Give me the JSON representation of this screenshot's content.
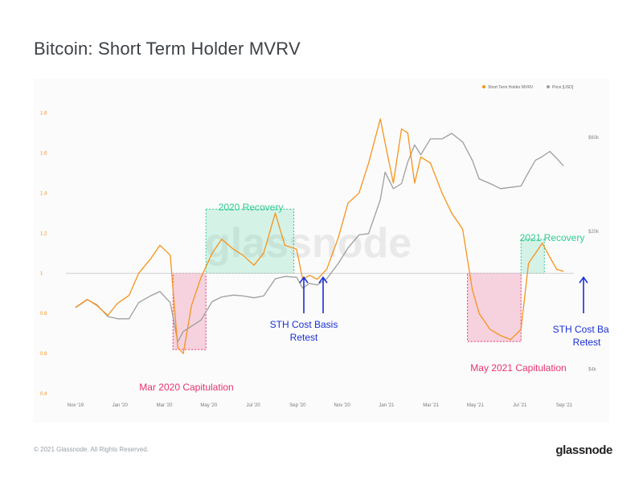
{
  "title": "Bitcoin: Short Term Holder MVRV",
  "footer": {
    "copyright": "© 2021 Glassnode. All Rights Reserved.",
    "logo": "glassnode"
  },
  "watermark": "glassnode",
  "colors": {
    "mvrv": "#f7931a",
    "price": "#9e9e9e",
    "recovery": "#2ecc8f",
    "capitulation": "#e8336d",
    "arrow": "#1a2fd6"
  },
  "chart_data": {
    "type": "line",
    "legend_position": "top-right",
    "grid": false,
    "x_ticks": [
      "Nov '19",
      "Jan '20",
      "Mar '20",
      "May '20",
      "Jul '20",
      "Sep '20",
      "Nov '20",
      "Jan '21",
      "Mar '21",
      "May '21",
      "Jul '21",
      "Sep '21"
    ],
    "y_left": {
      "ticks": [
        "0.4",
        "0.6",
        "0.8",
        "1",
        "1.2",
        "1.4",
        "1.6",
        "1.8"
      ],
      "lim": [
        0.4,
        1.85
      ]
    },
    "y_right": {
      "ticks": [
        "$4k",
        "$20k",
        "$60k"
      ],
      "scale": "log"
    },
    "series": [
      {
        "name": "Short Term Holder MVRV",
        "color": "#f7931a",
        "axis": "left",
        "x": [
          "2019-10-15",
          "2019-11-01",
          "2019-11-15",
          "2019-12-01",
          "2019-12-15",
          "2020-01-01",
          "2020-01-15",
          "2020-02-01",
          "2020-02-15",
          "2020-03-01",
          "2020-03-12",
          "2020-03-20",
          "2020-04-01",
          "2020-04-15",
          "2020-05-01",
          "2020-05-15",
          "2020-06-01",
          "2020-06-15",
          "2020-07-01",
          "2020-07-15",
          "2020-08-01",
          "2020-08-15",
          "2020-09-01",
          "2020-09-10",
          "2020-09-20",
          "2020-10-01",
          "2020-10-15",
          "2020-11-01",
          "2020-11-15",
          "2020-12-01",
          "2020-12-15",
          "2021-01-01",
          "2021-01-08",
          "2021-01-20",
          "2021-02-01",
          "2021-02-10",
          "2021-02-20",
          "2021-03-01",
          "2021-03-15",
          "2021-04-01",
          "2021-04-15",
          "2021-05-01",
          "2021-05-15",
          "2021-05-25",
          "2021-06-10",
          "2021-06-25",
          "2021-07-10",
          "2021-07-25",
          "2021-08-05",
          "2021-08-15",
          "2021-08-25",
          "2021-09-05",
          "2021-09-15",
          "2021-09-25"
        ],
        "y": [
          0.83,
          0.87,
          0.84,
          0.79,
          0.85,
          0.89,
          1.0,
          1.07,
          1.14,
          1.09,
          0.63,
          0.6,
          0.84,
          0.98,
          1.1,
          1.17,
          1.12,
          1.09,
          1.04,
          1.1,
          1.3,
          1.14,
          1.12,
          0.97,
          0.99,
          0.97,
          1.02,
          1.18,
          1.35,
          1.4,
          1.55,
          1.77,
          1.65,
          1.45,
          1.72,
          1.7,
          1.45,
          1.58,
          1.55,
          1.4,
          1.3,
          1.22,
          0.92,
          0.8,
          0.72,
          0.69,
          0.67,
          0.72,
          1.05,
          1.1,
          1.15,
          1.08,
          1.02,
          1.01
        ]
      },
      {
        "name": "Price [USD]",
        "color": "#9e9e9e",
        "axis": "right",
        "x": [
          "2019-10-15",
          "2019-11-01",
          "2019-11-15",
          "2019-12-01",
          "2019-12-15",
          "2020-01-01",
          "2020-01-15",
          "2020-02-01",
          "2020-02-15",
          "2020-03-01",
          "2020-03-12",
          "2020-03-20",
          "2020-04-01",
          "2020-04-15",
          "2020-05-01",
          "2020-05-15",
          "2020-06-01",
          "2020-06-15",
          "2020-07-01",
          "2020-07-15",
          "2020-08-01",
          "2020-08-15",
          "2020-09-01",
          "2020-09-10",
          "2020-09-20",
          "2020-10-01",
          "2020-10-15",
          "2020-11-01",
          "2020-11-15",
          "2020-12-01",
          "2020-12-15",
          "2021-01-01",
          "2021-01-08",
          "2021-01-20",
          "2021-02-01",
          "2021-02-10",
          "2021-02-20",
          "2021-03-01",
          "2021-03-15",
          "2021-04-01",
          "2021-04-15",
          "2021-05-01",
          "2021-05-15",
          "2021-05-25",
          "2021-06-10",
          "2021-06-25",
          "2021-07-10",
          "2021-07-25",
          "2021-08-05",
          "2021-08-15",
          "2021-08-25",
          "2021-09-05",
          "2021-09-15",
          "2021-09-25"
        ],
        "y": [
          8200,
          9000,
          8500,
          7400,
          7200,
          7200,
          8700,
          9400,
          9900,
          8700,
          5500,
          6200,
          6600,
          7100,
          8800,
          9300,
          9500,
          9400,
          9200,
          9400,
          11500,
          11800,
          11700,
          10300,
          10900,
          10700,
          11500,
          13800,
          16500,
          19200,
          19500,
          29000,
          40000,
          33000,
          35000,
          45000,
          55000,
          49000,
          59000,
          59000,
          63000,
          57000,
          46000,
          37000,
          35000,
          33000,
          33500,
          34000,
          40000,
          46000,
          48000,
          51000,
          47000,
          43000
        ]
      }
    ],
    "annotations": [
      {
        "text": "2020 Recovery",
        "kind": "recovery"
      },
      {
        "text": "Mar 2020 Capitulation",
        "kind": "capitulation"
      },
      {
        "text": "STH Cost Basis Retest",
        "kind": "retest"
      },
      {
        "text": "May 2021 Capitulation",
        "kind": "capitulation"
      },
      {
        "text": "2021 Recovery",
        "kind": "recovery"
      },
      {
        "text": "STH Cost Basis Retest",
        "kind": "retest"
      }
    ]
  }
}
